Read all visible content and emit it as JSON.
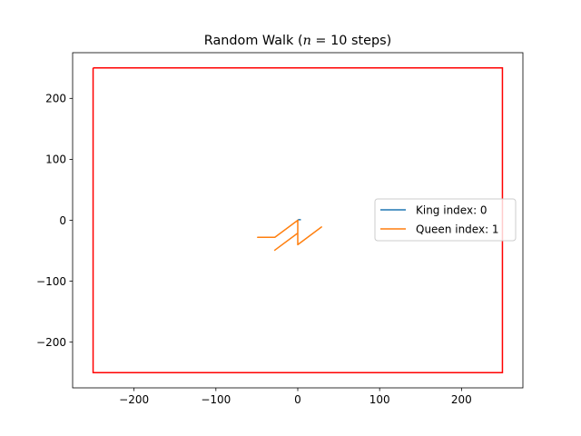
{
  "chart_data": {
    "type": "line",
    "title": "Random Walk (n = 10 steps)",
    "title_parts": {
      "prefix": "Random Walk (",
      "var": "n",
      "eq": " = ",
      "num": "10",
      "suffix": " steps)"
    },
    "xlabel": "",
    "ylabel": "",
    "xlim": [
      -275,
      275
    ],
    "ylim": [
      -275,
      275
    ],
    "xticks": [
      -200,
      -100,
      0,
      100,
      200
    ],
    "yticks": [
      -200,
      -100,
      0,
      100,
      200
    ],
    "xtick_labels": [
      "−200",
      "−100",
      "0",
      "100",
      "200"
    ],
    "ytick_labels": [
      "−200",
      "−100",
      "0",
      "100",
      "200"
    ],
    "grid": false,
    "legend_position": "center-right",
    "boundary": {
      "color": "#ff0000",
      "x": [
        -250,
        250,
        250,
        -250,
        -250
      ],
      "y": [
        250,
        250,
        -250,
        -250,
        250
      ]
    },
    "series": [
      {
        "name": "King index: 0",
        "color": "#1f77b4",
        "x": [
          0,
          1,
          3
        ],
        "y": [
          0,
          1,
          1
        ]
      },
      {
        "name": "Queen index: 1",
        "color": "#ff7f0e",
        "x": [
          0,
          -28,
          -49,
          -28,
          0,
          0,
          29,
          0,
          0,
          -28
        ],
        "y": [
          0,
          -28,
          -28,
          -28,
          0,
          -40,
          -11,
          -40,
          -21,
          -49
        ]
      }
    ]
  }
}
